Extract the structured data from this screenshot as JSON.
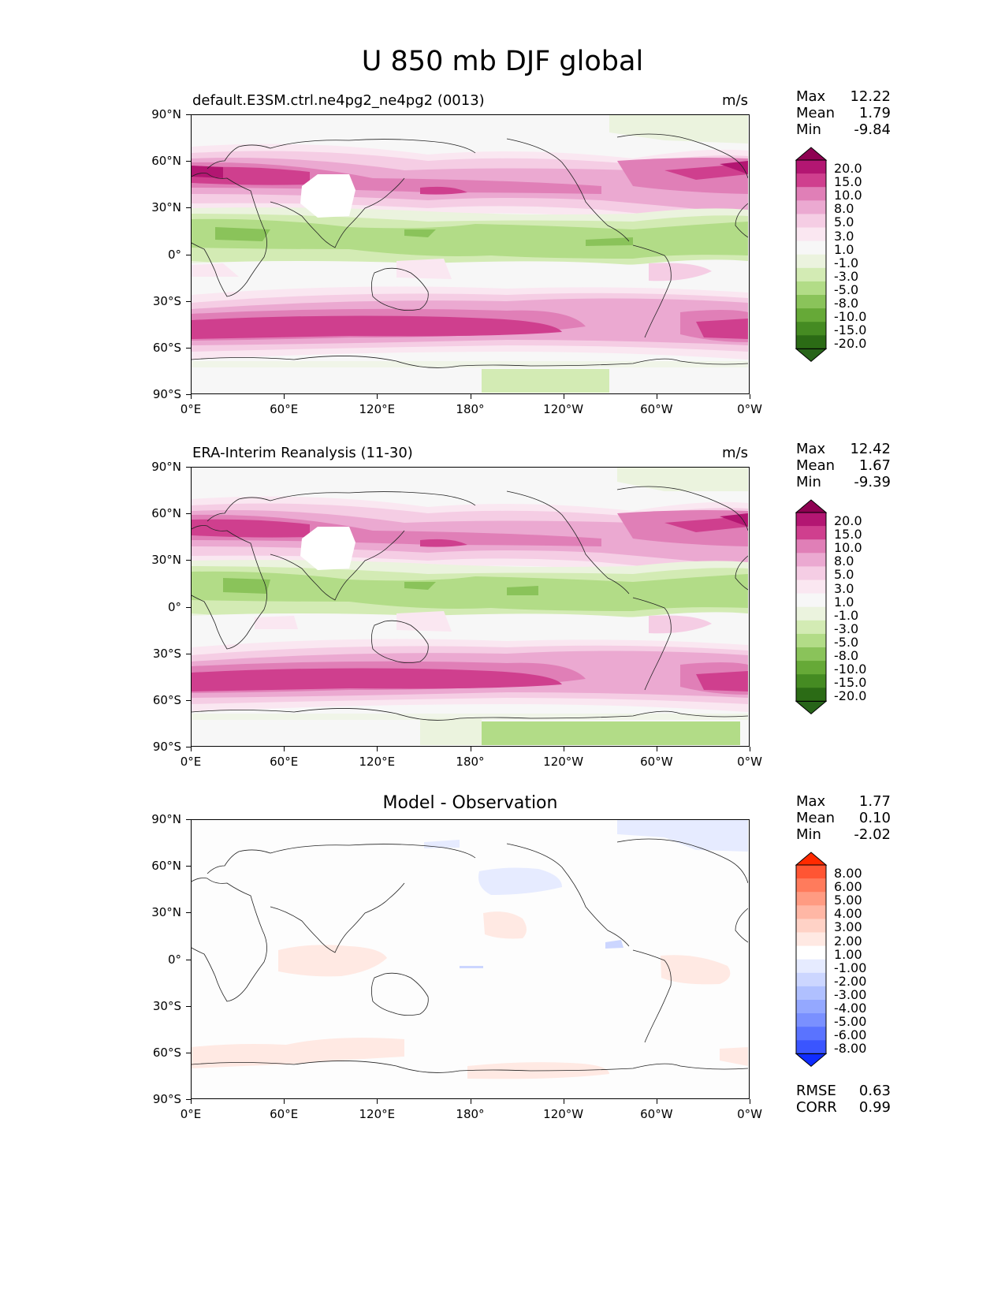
{
  "title": "U 850 mb DJF global",
  "ticks": {
    "lon": [
      "0°E",
      "60°E",
      "120°E",
      "180°",
      "120°W",
      "60°W",
      "0°W"
    ],
    "lat": [
      "90°N",
      "60°N",
      "30°N",
      "0°",
      "30°S",
      "60°S",
      "90°S"
    ]
  },
  "panels": [
    {
      "subtitle": "default.E3SM.ctrl.ne4pg2_ne4pg2 (0013)",
      "units": "m/s",
      "stats": [
        {
          "k": "Max",
          "v": "12.22"
        },
        {
          "k": "Mean",
          "v": "1.79"
        },
        {
          "k": "Min",
          "v": "-9.84"
        }
      ]
    },
    {
      "subtitle": "ERA-Interim Reanalysis (11-30)",
      "units": "m/s",
      "stats": [
        {
          "k": "Max",
          "v": "12.42"
        },
        {
          "k": "Mean",
          "v": "1.67"
        },
        {
          "k": "Min",
          "v": "-9.39"
        }
      ]
    },
    {
      "title": "Model - Observation",
      "stats": [
        {
          "k": "Max",
          "v": "1.77"
        },
        {
          "k": "Mean",
          "v": "0.10"
        },
        {
          "k": "Min",
          "v": "-2.02"
        }
      ],
      "metrics": [
        {
          "k": "RMSE",
          "v": "0.63"
        },
        {
          "k": "CORR",
          "v": "0.99"
        }
      ]
    }
  ],
  "colorbars": {
    "field": {
      "labels": [
        "20.0",
        "15.0",
        "10.0",
        "8.0",
        "5.0",
        "3.0",
        "1.0",
        "-1.0",
        "-3.0",
        "-5.0",
        "-8.0",
        "-10.0",
        "-15.0",
        "-20.0"
      ],
      "colors": [
        "#8e0152",
        "#b31672",
        "#cf3f8e",
        "#e07fb7",
        "#eba9d1",
        "#f5cde4",
        "#fae7f1",
        "#f7f7f7",
        "#ebf3de",
        "#d3ebb4",
        "#b2dc87",
        "#8ac35a",
        "#66a937",
        "#458b22",
        "#2b6b15",
        "#276419"
      ]
    },
    "diff": {
      "labels": [
        "8.00",
        "6.00",
        "5.00",
        "4.00",
        "3.00",
        "2.00",
        "1.00",
        "-1.00",
        "-2.00",
        "-3.00",
        "-4.00",
        "-5.00",
        "-6.00",
        "-8.00"
      ],
      "colors": [
        "#ff2a00",
        "#ff5533",
        "#ff7b5c",
        "#ff9b82",
        "#ffb7a5",
        "#ffd2c6",
        "#ffe9e3",
        "#ffffff",
        "#e6ebff",
        "#ccd6ff",
        "#b0c0ff",
        "#94a8ff",
        "#7a90ff",
        "#5a73ff",
        "#3a55ff",
        "#0f2cff"
      ]
    }
  }
}
